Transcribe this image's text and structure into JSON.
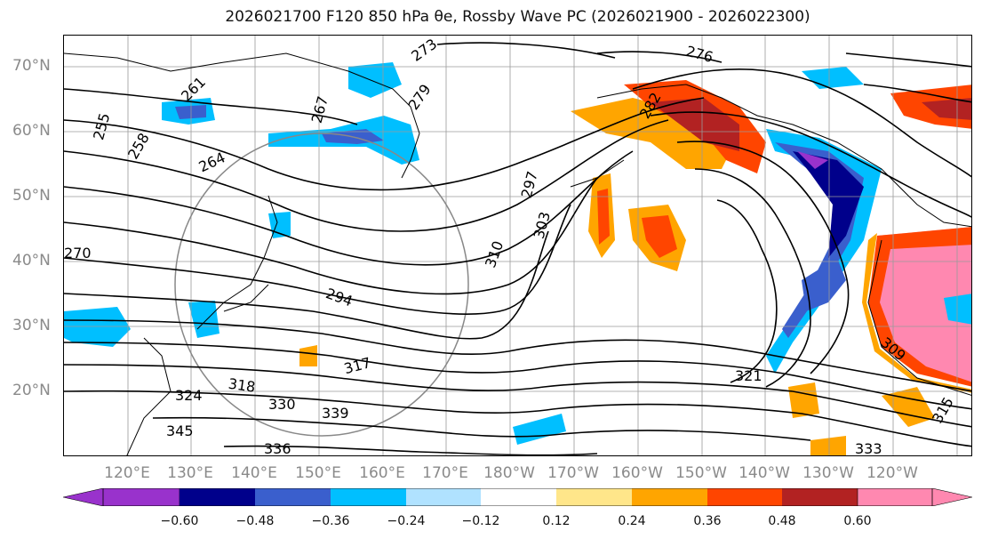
{
  "title": "2026021700 F120 850 hPa θe, Rossby Wave PC (2026021900 - 2026022300)",
  "lat_labels": [
    "70°N",
    "60°N",
    "50°N",
    "40°N",
    "30°N",
    "20°N"
  ],
  "lon_labels": [
    "120°E",
    "130°E",
    "140°E",
    "150°E",
    "160°E",
    "170°E",
    "180°W",
    "170°W",
    "160°W",
    "150°W",
    "140°W",
    "130°W",
    "120°W"
  ],
  "contour_labels": [
    "255",
    "258",
    "261",
    "264",
    "267",
    "270",
    "273",
    "276",
    "279",
    "282",
    "294",
    "297",
    "303",
    "309",
    "310",
    "315",
    "317",
    "318",
    "321",
    "324",
    "330",
    "333",
    "336",
    "339",
    "345"
  ],
  "colorbar": {
    "ticks": [
      "−0.60",
      "−0.48",
      "−0.36",
      "−0.24",
      "−0.12",
      "0.12",
      "0.24",
      "0.36",
      "0.48",
      "0.60"
    ],
    "colors": [
      "#9932cc",
      "#00008b",
      "#3a5fcd",
      "#00bfff",
      "#b0e2ff",
      "#ffffff",
      "#ffe68a",
      "#ffa500",
      "#ff4500",
      "#b22222",
      "#ff88b0"
    ]
  }
}
